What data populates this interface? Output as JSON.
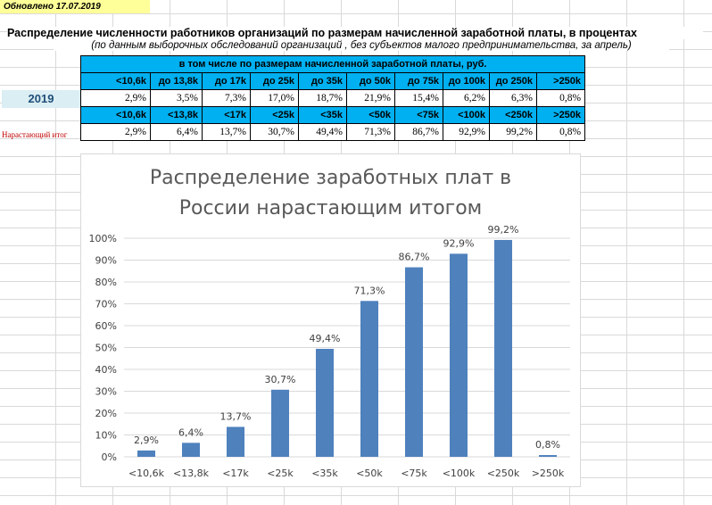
{
  "updated_note": "Обновлено 17.07.2019",
  "title": "Распределение численности работников организаций по размерам начисленной заработной платы, в процентах",
  "subtitle": "(по данным  выборочных обследований организаций , без субъектов малого предпринимательства, за апрель)",
  "table": {
    "group_header": "в том числе по размерам начисленной заработной платы, руб.",
    "headers": [
      "<10,6k",
      "до 13,8k",
      "до 17k",
      "до 25k",
      "до 35k",
      "до 50k",
      "до 75k",
      "до 100k",
      "до 250k",
      ">250k"
    ],
    "year_label": "2019",
    "year_values": [
      "2,9%",
      "3,5%",
      "7,3%",
      "17,0%",
      "18,7%",
      "21,9%",
      "15,4%",
      "6,2%",
      "6,3%",
      "0,8%"
    ],
    "cum_headers": [
      "<10,6k",
      "<13,8k",
      "<17k",
      "<25k",
      "<35k",
      "<50k",
      "<75k",
      "<100k",
      "<250k",
      ">250k"
    ],
    "cum_label": "Нарастающий итог",
    "cum_values": [
      "2,9%",
      "6,4%",
      "13,7%",
      "30,7%",
      "49,4%",
      "71,3%",
      "86,7%",
      "92,9%",
      "99,2%",
      "0,8%"
    ]
  },
  "colors": {
    "header_fill": "#00b0f0",
    "year_fill": "#daeef3",
    "bar": "#4f81bd",
    "cum_label_text": "#c00000",
    "updated_fill": "#ffff99"
  },
  "chart_data": {
    "type": "bar",
    "title_lines": [
      "Распределение заработных плат в",
      "России нарастающим итогом"
    ],
    "categories": [
      "<10,6k",
      "<13,8k",
      "<17k",
      "<25k",
      "<35k",
      "<50k",
      "<75k",
      "<100k",
      "<250k",
      ">250k"
    ],
    "values": [
      2.9,
      6.4,
      13.7,
      30.7,
      49.4,
      71.3,
      86.7,
      92.9,
      99.2,
      0.8
    ],
    "data_labels": [
      "2,9%",
      "6,4%",
      "13,7%",
      "30,7%",
      "49,4%",
      "71,3%",
      "86,7%",
      "92,9%",
      "99,2%",
      "0,8%"
    ],
    "ylim": [
      0,
      100
    ],
    "yticks": [
      0,
      10,
      20,
      30,
      40,
      50,
      60,
      70,
      80,
      90,
      100
    ],
    "ytick_labels": [
      "0%",
      "10%",
      "20%",
      "30%",
      "40%",
      "50%",
      "60%",
      "70%",
      "80%",
      "90%",
      "100%"
    ],
    "grid": true,
    "legend": "none",
    "xlabel": "",
    "ylabel": ""
  }
}
